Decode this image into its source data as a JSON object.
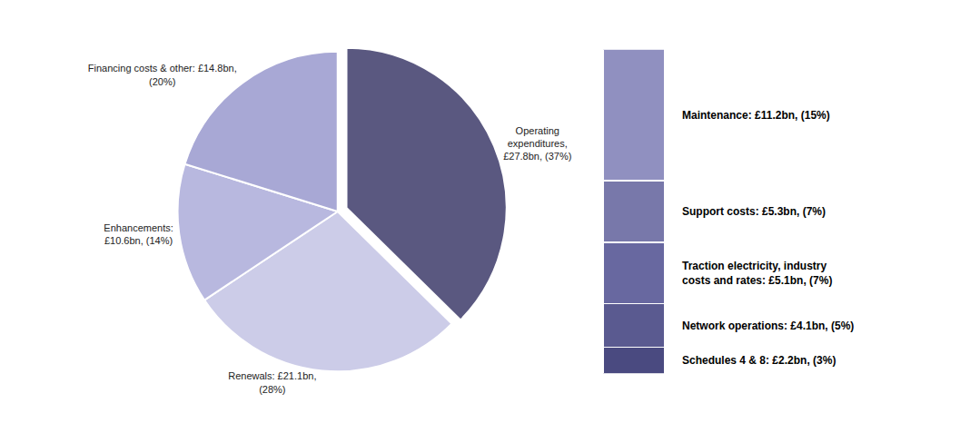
{
  "chart_data": [
    {
      "type": "pie",
      "categories": [
        "Operating\nexpenditures,\n£27.8bn, (37%)",
        "Renewals: £21.1bn,\n(28%)",
        "Enhancements:\n£10.6bn, (14%)",
        "Financing costs & other: £14.8bn,\n(20%)"
      ],
      "values": [
        37,
        28,
        14,
        20
      ],
      "colors": [
        "#5a5880",
        "#cccce8",
        "#b8b8df",
        "#a8a8d5"
      ]
    },
    {
      "type": "bar",
      "stacked": true,
      "categories": [
        null
      ],
      "series": [
        {
          "name": "Maintenance: £11.2bn, (15%)",
          "color": "#9090c0",
          "values": [
            15
          ]
        },
        {
          "name": "Support costs: £5.3bn, (7%)",
          "color": "#7878aa",
          "values": [
            7
          ]
        },
        {
          "name": "Traction electricity, industry\ncosts and rates: £5.1bn, (7%)",
          "color": "#6868a0",
          "values": [
            7
          ]
        },
        {
          "name": "Network operations: £4.1bn, (5%)",
          "color": "#5a5a90",
          "values": [
            5
          ]
        },
        {
          "name": "Schedules 4 & 8: £2.2bn, (3%)",
          "color": "#4a4a80",
          "values": [
            3
          ]
        }
      ],
      "ylim": [
        0,
        37
      ],
      "tick_labels": false
    }
  ]
}
